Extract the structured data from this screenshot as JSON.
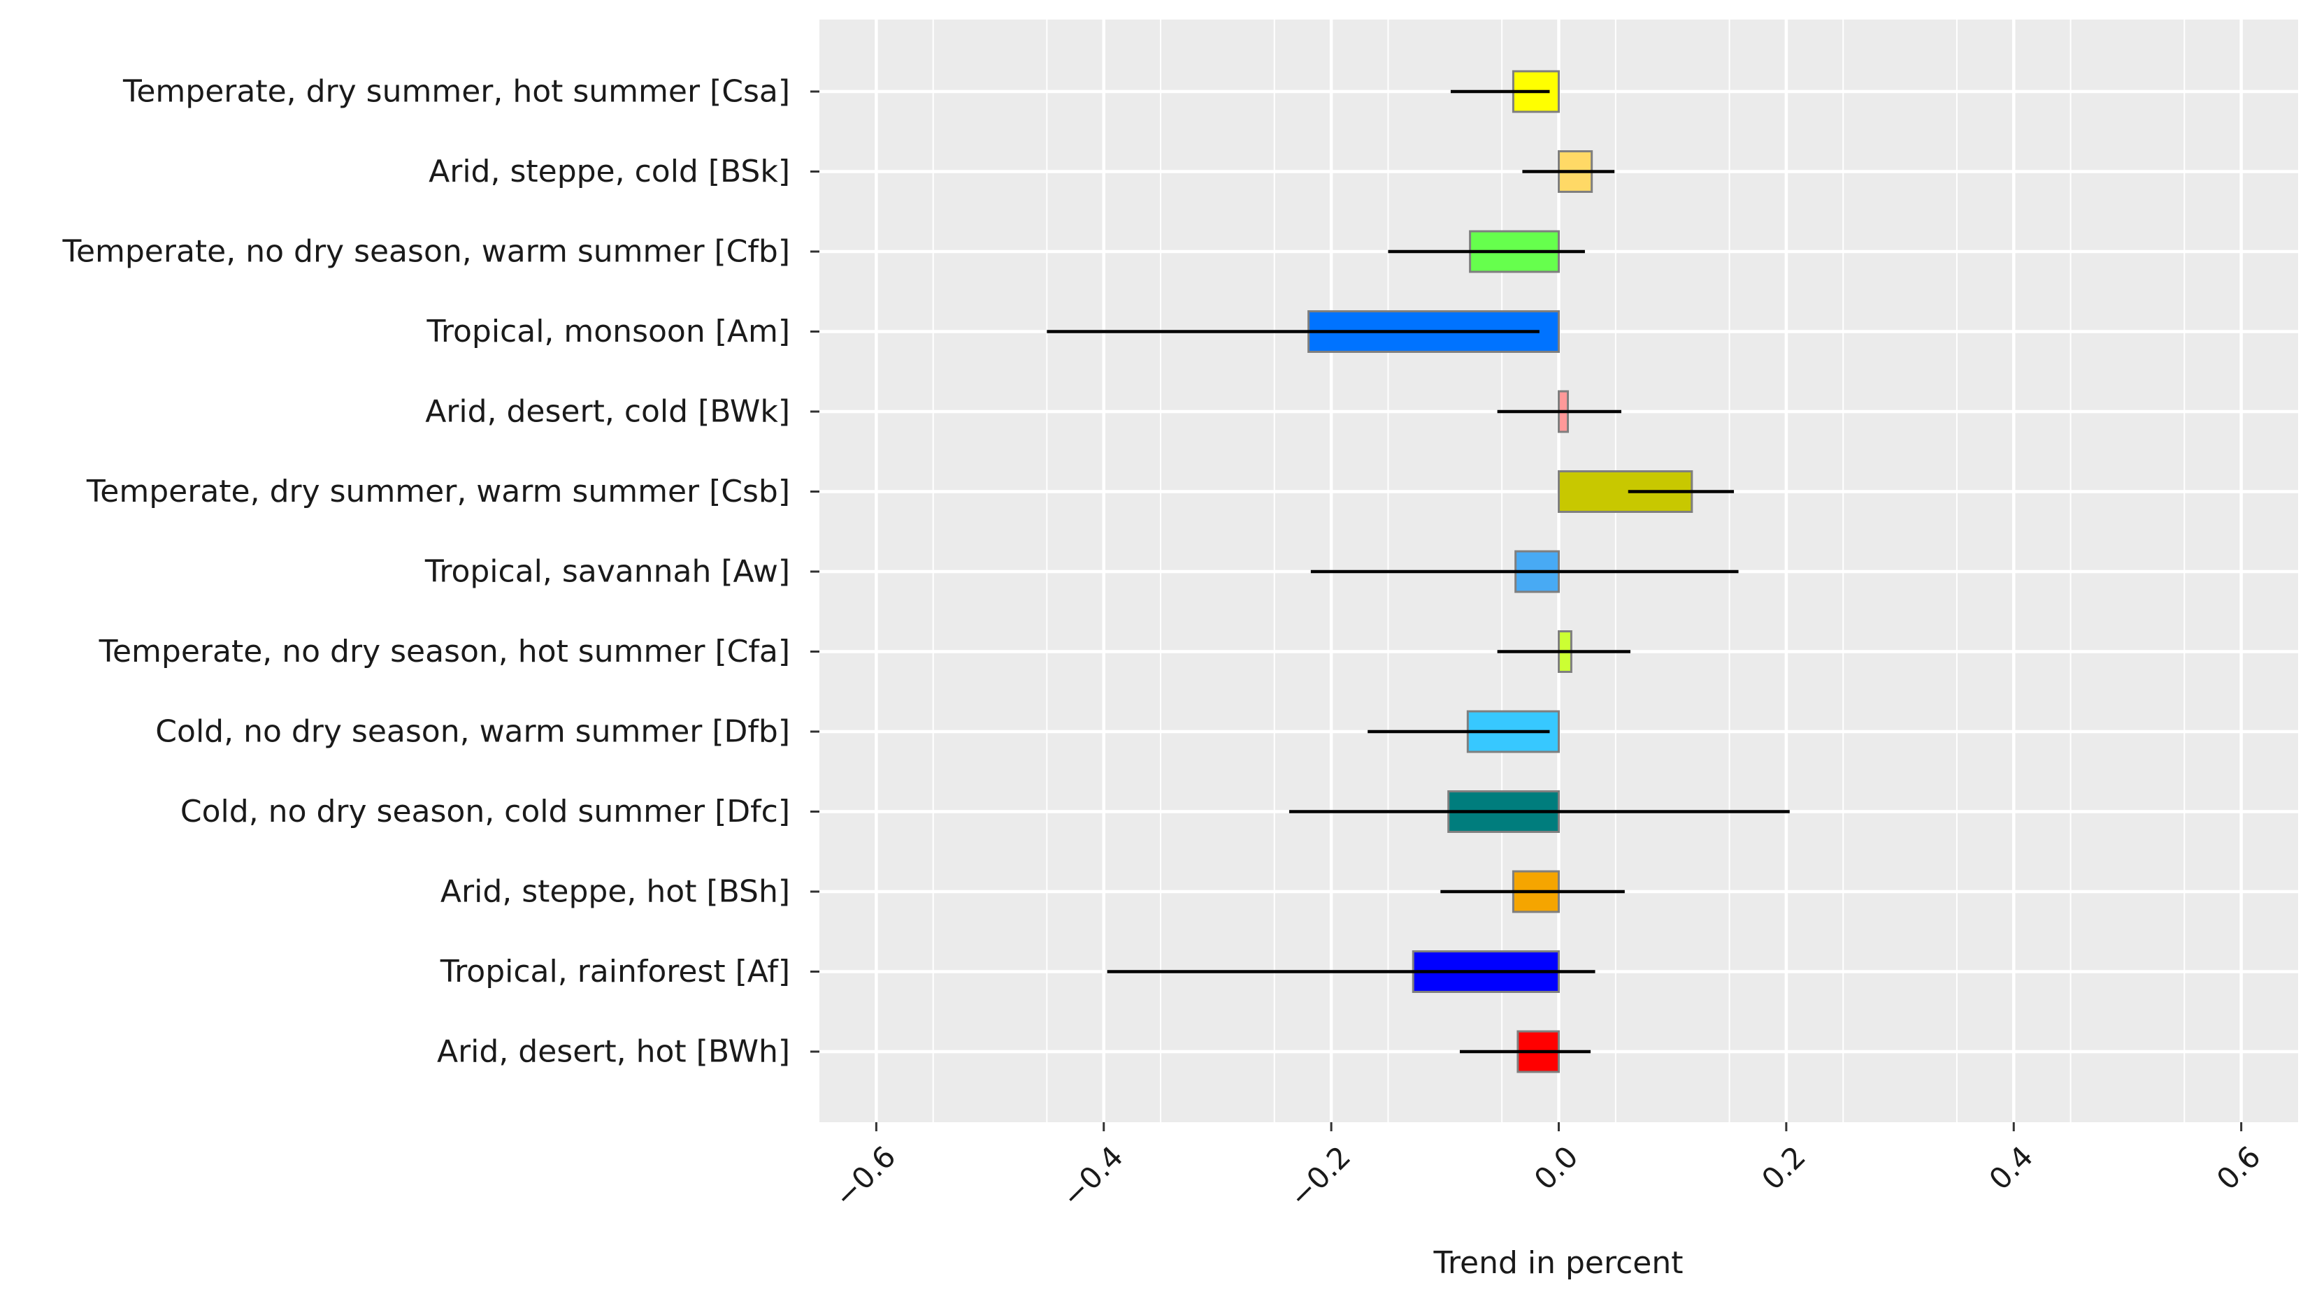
{
  "chart_data": {
    "type": "bar",
    "orientation": "horizontal",
    "title": "",
    "xlabel": "Trend in percent",
    "ylabel": "",
    "xlim": [
      -0.65,
      0.65
    ],
    "x_ticks": [
      -0.6,
      -0.4,
      -0.2,
      0.0,
      0.2,
      0.4,
      0.6
    ],
    "x_tick_labels": [
      "−0.6",
      "−0.4",
      "−0.2",
      "0.0",
      "0.2",
      "0.4",
      "0.6"
    ],
    "grid": true,
    "categories": [
      {
        "label": "Temperate, dry summer, hot summer [Csa]",
        "value": -0.04,
        "err_low": -0.095,
        "err_high": -0.008,
        "color": "#ffff00"
      },
      {
        "label": "Arid, steppe, cold [BSk]",
        "value": 0.029,
        "err_low": -0.032,
        "err_high": 0.049,
        "color": "#ffd966"
      },
      {
        "label": "Temperate, no dry season, warm summer [Cfb]",
        "value": -0.078,
        "err_low": -0.15,
        "err_high": 0.023,
        "color": "#66ff4d"
      },
      {
        "label": "Tropical, monsoon [Am]",
        "value": -0.22,
        "err_low": -0.45,
        "err_high": -0.017,
        "color": "#0073ff"
      },
      {
        "label": "Arid, desert, cold [BWk]",
        "value": 0.008,
        "err_low": -0.054,
        "err_high": 0.055,
        "color": "#ff9999"
      },
      {
        "label": "Temperate, dry summer, warm summer [Csb]",
        "value": 0.117,
        "err_low": 0.061,
        "err_high": 0.154,
        "color": "#c8c800"
      },
      {
        "label": "Tropical, savannah [Aw]",
        "value": -0.038,
        "err_low": -0.218,
        "err_high": 0.158,
        "color": "#48aaf4"
      },
      {
        "label": "Temperate, no dry season, hot summer [Cfa]",
        "value": 0.011,
        "err_low": -0.054,
        "err_high": 0.063,
        "color": "#ccff33"
      },
      {
        "label": "Cold, no dry season, warm summer [Dfb]",
        "value": -0.08,
        "err_low": -0.168,
        "err_high": -0.008,
        "color": "#37c8ff"
      },
      {
        "label": "Cold, no dry season, cold summer [Dfc]",
        "value": -0.097,
        "err_low": -0.237,
        "err_high": 0.203,
        "color": "#007d7d"
      },
      {
        "label": "Arid, steppe, hot [BSh]",
        "value": -0.04,
        "err_low": -0.104,
        "err_high": 0.058,
        "color": "#f5a500"
      },
      {
        "label": "Tropical, rainforest [Af]",
        "value": -0.128,
        "err_low": -0.397,
        "err_high": 0.032,
        "color": "#0000ff"
      },
      {
        "label": "Arid, desert, hot [BWh]",
        "value": -0.036,
        "err_low": -0.087,
        "err_high": 0.028,
        "color": "#ff0000"
      }
    ]
  }
}
